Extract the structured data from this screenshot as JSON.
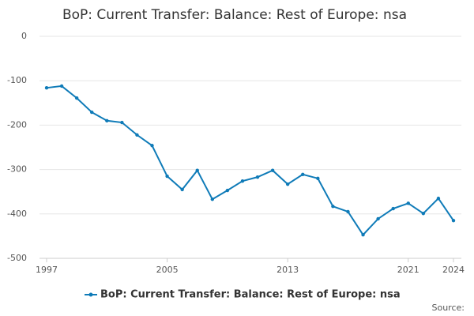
{
  "chart_data": {
    "type": "line",
    "title": "BoP: Current Transfer: Balance: Rest of Europe: nsa",
    "x": [
      1997,
      1998,
      1999,
      2000,
      2001,
      2002,
      2003,
      2004,
      2005,
      2006,
      2007,
      2008,
      2009,
      2010,
      2011,
      2012,
      2013,
      2014,
      2015,
      2016,
      2017,
      2018,
      2019,
      2020,
      2021,
      2022,
      2023,
      2024
    ],
    "series": [
      {
        "name": "BoP: Current Transfer: Balance: Rest of Europe: nsa",
        "color": "#0f7bb8",
        "values": [
          -116,
          -112,
          -139,
          -171,
          -190,
          -194,
          -222,
          -246,
          -315,
          -345,
          -302,
          -367,
          -347,
          -326,
          -317,
          -302,
          -333,
          -311,
          -320,
          -383,
          -395,
          -447,
          -411,
          -388,
          -376,
          -399,
          -365,
          -415
        ]
      }
    ],
    "xlim": [
      1997,
      2024
    ],
    "xticks": [
      1997,
      2005,
      2013,
      2021,
      2024
    ],
    "ylim": [
      -500,
      0
    ],
    "yticks": [
      0,
      -100,
      -200,
      -300,
      -400,
      -500
    ],
    "grid": true,
    "legend": "bottom",
    "source": "Source:"
  }
}
